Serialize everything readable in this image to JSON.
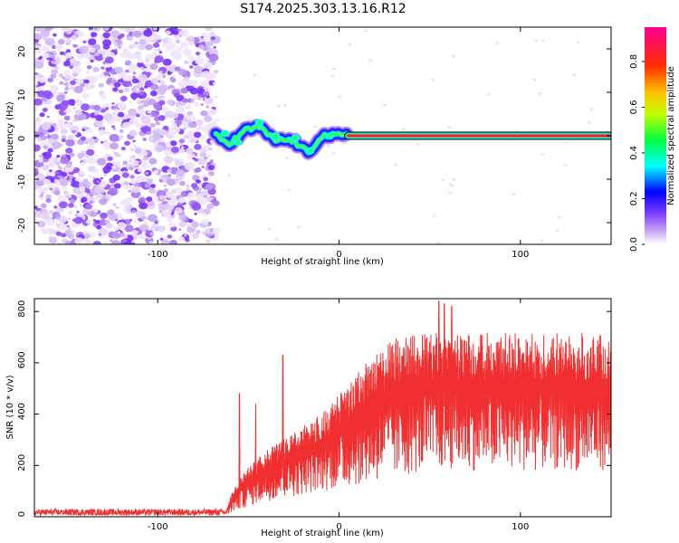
{
  "title": "S174.2025.303.13.16.R12",
  "chart_data": [
    {
      "type": "heatmap",
      "xlabel": "Height of straight line (km)",
      "ylabel": "Frequency (Hz)",
      "xlim": [
        -168,
        150
      ],
      "ylim": [
        -25,
        25
      ],
      "xticks": [
        -100,
        0,
        100
      ],
      "xtick_labels": [
        "-100",
        "0",
        "100"
      ],
      "yticks": [
        -20,
        -10,
        0,
        10,
        20
      ],
      "ytick_labels": [
        "-20",
        "-10",
        "0",
        "10",
        "20"
      ],
      "colorbar": {
        "label": "Normalized spectral amplitude",
        "range": [
          0.0,
          0.95
        ],
        "ticks": [
          0.0,
          0.2,
          0.4,
          0.6,
          0.8
        ],
        "tick_labels": [
          "0.0",
          "0.2",
          "0.4",
          "0.6",
          "0.8"
        ],
        "colors": [
          "#ffffff",
          "#c8a8f0",
          "#8040ff",
          "#0000ff",
          "#00ffff",
          "#00ff00",
          "#ffff00",
          "#ff8000",
          "#ff0000",
          "#ff00a0"
        ]
      },
      "features": {
        "noise_region_x": [
          -168,
          -70
        ],
        "tonal_line": {
          "x": [
            5,
            150
          ],
          "frequency": 0,
          "amplitude": 0.9
        },
        "wandering_signal": [
          {
            "x": -68,
            "f": 0
          },
          {
            "x": -60,
            "f": -2
          },
          {
            "x": -53,
            "f": 1
          },
          {
            "x": -44,
            "f": 2
          },
          {
            "x": -36,
            "f": -1
          },
          {
            "x": -26,
            "f": -1
          },
          {
            "x": -17,
            "f": -4
          },
          {
            "x": -10,
            "f": 0
          },
          {
            "x": 0,
            "f": 0
          },
          {
            "x": 5,
            "f": 0
          }
        ]
      }
    },
    {
      "type": "line",
      "xlabel": "Height of straight line (km)",
      "ylabel": "SNR (10 * v/v)",
      "xlim": [
        -168,
        150
      ],
      "ylim": [
        0,
        850
      ],
      "xticks": [
        -100,
        0,
        100
      ],
      "xtick_labels": [
        "-100",
        "0",
        "100"
      ],
      "yticks": [
        0,
        200,
        400,
        600,
        800
      ],
      "ytick_labels": [
        "0",
        "200",
        "400",
        "600",
        "800"
      ],
      "color": "#f03030",
      "envelope": [
        {
          "x": -168,
          "lo": 5,
          "hi": 30
        },
        {
          "x": -62,
          "lo": 5,
          "hi": 30
        },
        {
          "x": -58,
          "lo": 20,
          "hi": 120
        },
        {
          "x": -50,
          "lo": 40,
          "hi": 200
        },
        {
          "x": -40,
          "lo": 60,
          "hi": 260
        },
        {
          "x": -25,
          "lo": 80,
          "hi": 330
        },
        {
          "x": -10,
          "lo": 100,
          "hi": 400
        },
        {
          "x": 0,
          "lo": 110,
          "hi": 480
        },
        {
          "x": 15,
          "lo": 130,
          "hi": 600
        },
        {
          "x": 30,
          "lo": 150,
          "hi": 700
        },
        {
          "x": 50,
          "lo": 180,
          "hi": 720
        },
        {
          "x": 100,
          "lo": 180,
          "hi": 720
        },
        {
          "x": 150,
          "lo": 180,
          "hi": 720
        }
      ],
      "spikes": [
        {
          "x": -55,
          "y": 480
        },
        {
          "x": -46,
          "y": 440
        },
        {
          "x": -31,
          "y": 630
        },
        {
          "x": 55,
          "y": 840
        },
        {
          "x": 58,
          "y": 830
        },
        {
          "x": 62,
          "y": 820
        }
      ]
    }
  ]
}
